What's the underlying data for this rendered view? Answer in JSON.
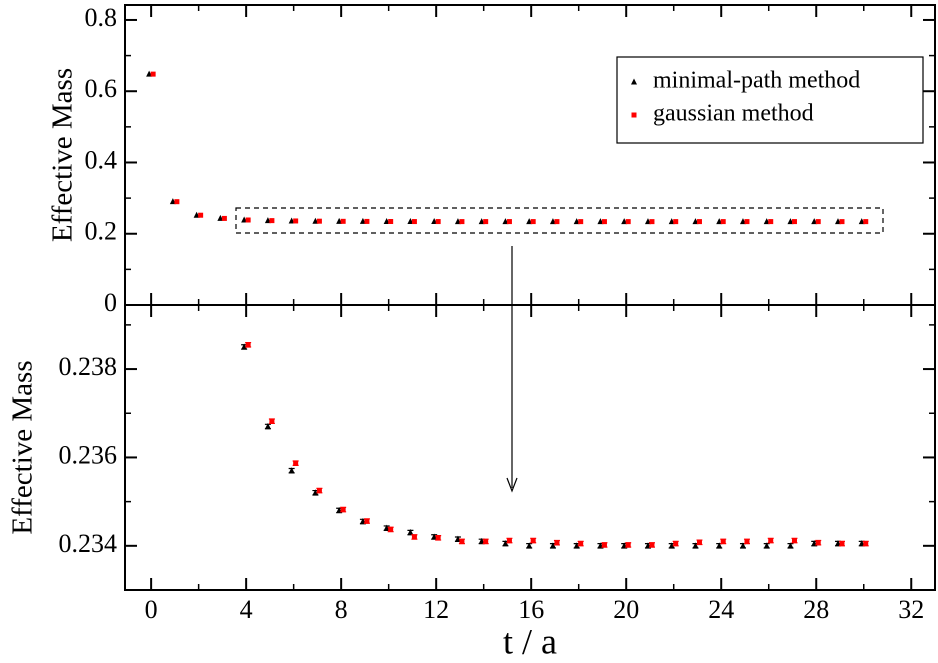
{
  "chart_data": [
    {
      "type": "scatter",
      "ylabel": "Effective Mass",
      "xlim": [
        -1.1,
        33
      ],
      "xticks": [
        0,
        4,
        8,
        12,
        16,
        20,
        24,
        28,
        32
      ],
      "ylim": [
        0,
        0.842
      ],
      "yticks": [
        0,
        0.2,
        0.4,
        0.6,
        0.8
      ],
      "legend": "upper right",
      "x": [
        0,
        1,
        2,
        3,
        4,
        5,
        6,
        7,
        8,
        9,
        10,
        11,
        12,
        13,
        14,
        15,
        16,
        17,
        18,
        19,
        20,
        21,
        22,
        23,
        24,
        25,
        26,
        27,
        28,
        29,
        30
      ],
      "series": [
        {
          "name": "minimal-path method",
          "color": "#000000",
          "marker": "triangle",
          "values": [
            0.648,
            0.29,
            0.252,
            0.243,
            0.2385,
            0.2367,
            0.2357,
            0.2352,
            0.2348,
            0.23455,
            0.2344,
            0.2343,
            0.2342,
            0.23415,
            0.2341,
            0.23405,
            0.234,
            0.234,
            0.234,
            0.234,
            0.234,
            0.234,
            0.234,
            0.234,
            0.234,
            0.234,
            0.234,
            0.234,
            0.23405,
            0.23405,
            0.23405
          ]
        },
        {
          "name": "gaussian method",
          "color": "#ff0000",
          "marker": "square",
          "values": [
            0.648,
            0.29,
            0.252,
            0.243,
            0.23855,
            0.23682,
            0.23587,
            0.23525,
            0.23482,
            0.23456,
            0.23437,
            0.2342,
            0.23418,
            0.2341,
            0.2341,
            0.23412,
            0.23412,
            0.23407,
            0.23405,
            0.23402,
            0.23402,
            0.23402,
            0.23405,
            0.23408,
            0.2341,
            0.2341,
            0.23412,
            0.23412,
            0.23407,
            0.23405,
            0.23405
          ]
        }
      ]
    },
    {
      "type": "scatter",
      "ylabel": "Effective Mass",
      "xlabel": "t / a",
      "xlim": [
        -1.1,
        33
      ],
      "xticks": [
        0,
        4,
        8,
        12,
        16,
        20,
        24,
        28,
        32
      ],
      "ylim": [
        0.233,
        0.23945
      ],
      "yticks": [
        0.234,
        0.236,
        0.238
      ],
      "x": [
        4,
        5,
        6,
        7,
        8,
        9,
        10,
        11,
        12,
        13,
        14,
        15,
        16,
        17,
        18,
        19,
        20,
        21,
        22,
        23,
        24,
        25,
        26,
        27,
        28,
        29,
        30
      ],
      "series": [
        {
          "color": "#000000",
          "marker": "triangle",
          "values": [
            0.2385,
            0.2367,
            0.2357,
            0.2352,
            0.2348,
            0.23455,
            0.2344,
            0.2343,
            0.2342,
            0.23415,
            0.2341,
            0.23405,
            0.234,
            0.234,
            0.234,
            0.234,
            0.234,
            0.234,
            0.234,
            0.234,
            0.234,
            0.234,
            0.234,
            0.234,
            0.23405,
            0.23405,
            0.23405
          ],
          "errors": [
            5e-05,
            5e-05,
            5e-05,
            5e-05,
            5e-05,
            5e-05,
            5e-05,
            5e-05,
            5e-05,
            5e-05,
            5e-05,
            5e-05,
            5e-05,
            5e-05,
            5e-05,
            5e-05,
            5e-05,
            5e-05,
            5e-05,
            5e-05,
            5e-05,
            5e-05,
            5e-05,
            5e-05,
            5e-05,
            5e-05,
            5e-05
          ]
        },
        {
          "color": "#ff0000",
          "marker": "square",
          "values": [
            0.23855,
            0.23682,
            0.23587,
            0.23525,
            0.23482,
            0.23456,
            0.23437,
            0.2342,
            0.23418,
            0.2341,
            0.2341,
            0.23412,
            0.23412,
            0.23407,
            0.23405,
            0.23402,
            0.23402,
            0.23402,
            0.23405,
            0.23408,
            0.2341,
            0.2341,
            0.23412,
            0.23412,
            0.23407,
            0.23405,
            0.23405
          ],
          "errors": [
            5e-05,
            5e-05,
            5e-05,
            5e-05,
            5e-05,
            5e-05,
            5e-05,
            5e-05,
            5e-05,
            5e-05,
            5e-05,
            5e-05,
            5e-05,
            5e-05,
            5e-05,
            5e-05,
            5e-05,
            5e-05,
            5e-05,
            5e-05,
            5e-05,
            5e-05,
            5e-05,
            5e-05,
            5e-05,
            5e-05,
            5e-05
          ]
        }
      ]
    }
  ]
}
